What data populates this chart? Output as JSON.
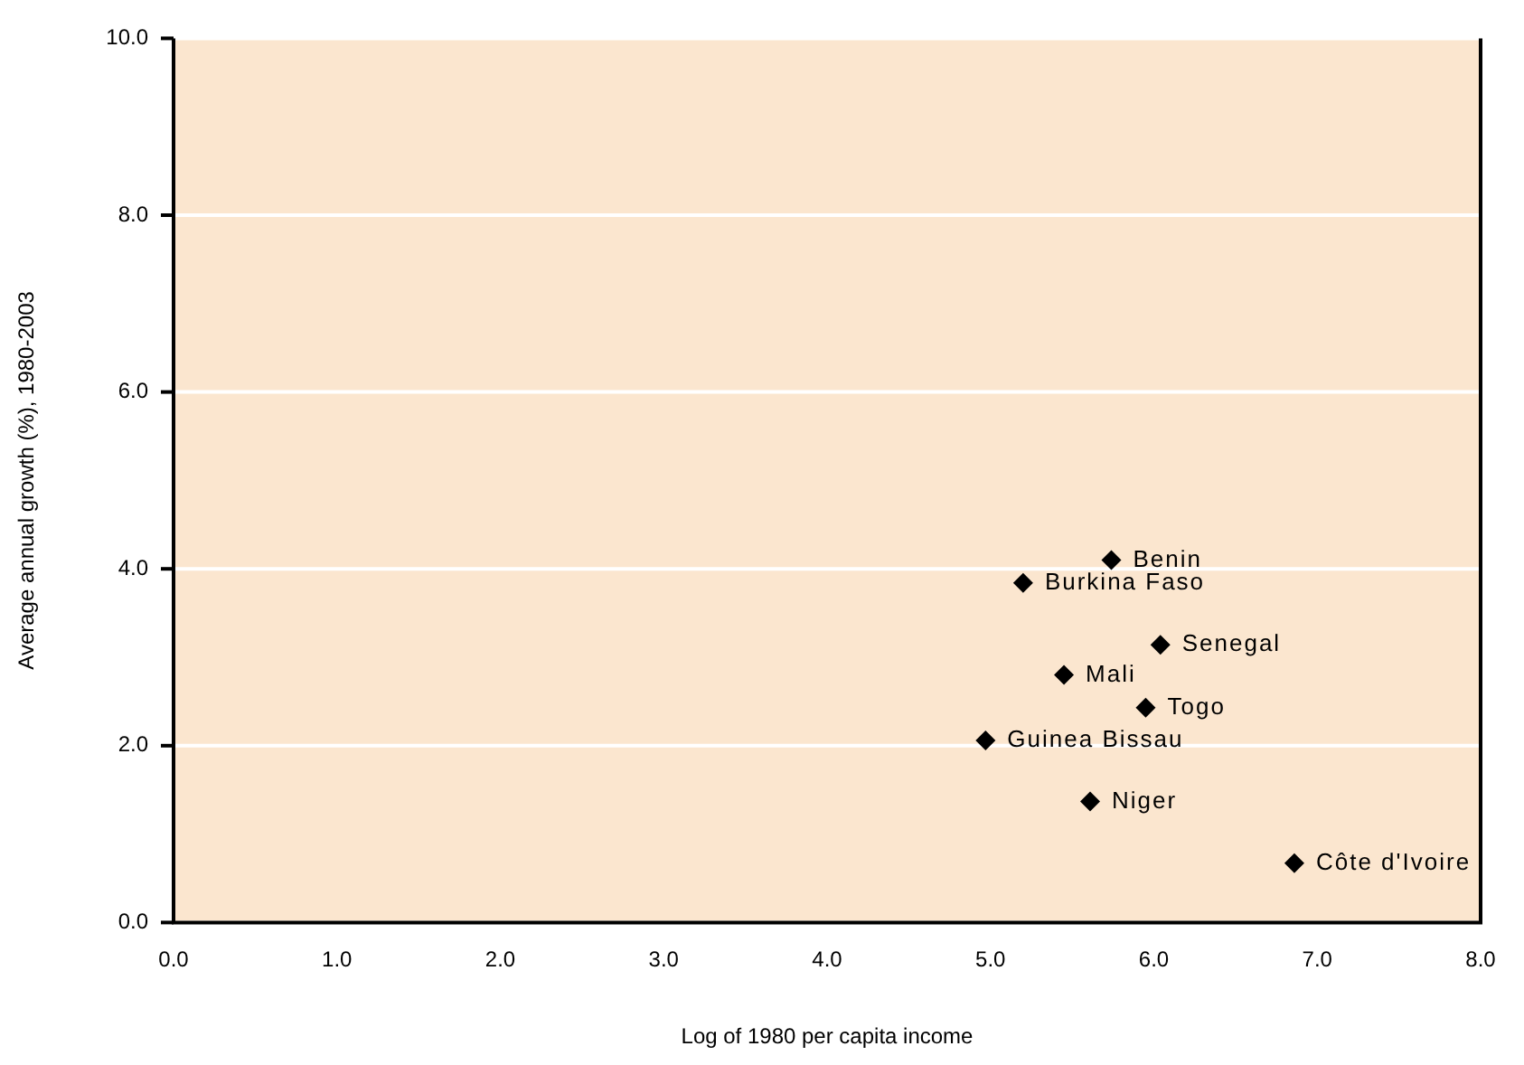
{
  "chart_data": {
    "type": "scatter",
    "xlabel": "Log of 1980 per capita income",
    "ylabel": "Average annual growth (%), 1980-2003",
    "x": [
      5.74,
      5.2,
      6.04,
      5.45,
      5.95,
      4.97,
      5.61,
      6.86
    ],
    "values": [
      4.1,
      3.84,
      3.14,
      2.8,
      2.43,
      2.06,
      1.37,
      0.67
    ],
    "color": "#000000",
    "marker": "diamond",
    "grid": "y",
    "legend": false,
    "xlim": [
      0,
      8
    ],
    "xticks": [
      {
        "value": 0,
        "label": "0.0"
      },
      {
        "value": 1,
        "label": "1.0"
      },
      {
        "value": 2,
        "label": "2.0"
      },
      {
        "value": 3,
        "label": "3.0"
      },
      {
        "value": 4,
        "label": "4.0"
      },
      {
        "value": 5,
        "label": "5.0"
      },
      {
        "value": 6,
        "label": "6.0"
      },
      {
        "value": 7,
        "label": "7.0"
      },
      {
        "value": 8,
        "label": "8.0"
      }
    ],
    "ylim": [
      0,
      10
    ],
    "yticks": [
      {
        "value": 0,
        "label": "0.0"
      },
      {
        "value": 2,
        "label": "2.0"
      },
      {
        "value": 4,
        "label": "4.0"
      },
      {
        "value": 6,
        "label": "6.0"
      },
      {
        "value": 8,
        "label": "8.0"
      },
      {
        "value": 10,
        "label": "10.0"
      }
    ],
    "annotations": [
      {
        "text": "Benin",
        "x": 5.74,
        "y": 4.1
      },
      {
        "text": "Burkina Faso",
        "x": 5.2,
        "y": 3.84
      },
      {
        "text": "Senegal",
        "x": 6.04,
        "y": 3.14
      },
      {
        "text": "Mali",
        "x": 5.45,
        "y": 2.8
      },
      {
        "text": "Togo",
        "x": 5.95,
        "y": 2.43
      },
      {
        "text": "Guinea Bissau",
        "x": 4.97,
        "y": 2.06
      },
      {
        "text": "Niger",
        "x": 5.61,
        "y": 1.37
      },
      {
        "text": "Côte d'Ivoire",
        "x": 6.86,
        "y": 0.67
      }
    ]
  }
}
